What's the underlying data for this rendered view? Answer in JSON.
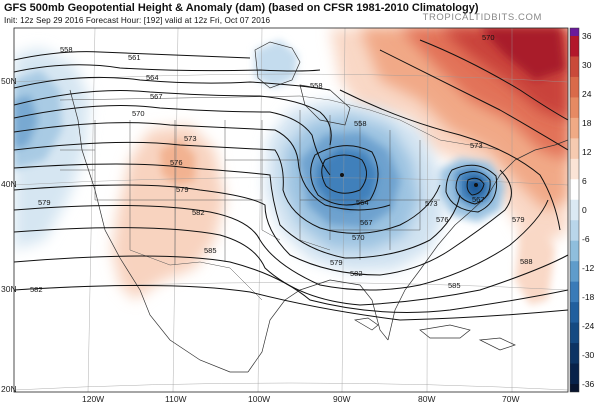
{
  "header": {
    "title": "GFS 500mb Geopotential Height & Anomaly (dam) (based on CFSR 1981-2010 Climatology)",
    "subtitle": "Init: 12z Sep 29 2016   Forecast Hour: [192]   valid at 12z Fri, Oct 07 2016",
    "brand": "TROPICALTIDBITS.COM"
  },
  "map": {
    "lat_labels": [
      "50N",
      "40N",
      "30N",
      "20N"
    ],
    "lon_labels": [
      "120W",
      "110W",
      "100W",
      "90W",
      "80W",
      "70W"
    ],
    "contour_labels": [
      "558",
      "561",
      "564",
      "567",
      "570",
      "573",
      "576",
      "579",
      "582",
      "585",
      "588",
      "564",
      "567",
      "570",
      "573",
      "576",
      "579",
      "582",
      "570",
      "573",
      "567",
      "558"
    ],
    "anomaly_centers": [
      {
        "type": "low",
        "region": "Upper Midwest"
      },
      {
        "type": "low",
        "region": "Mid-Atlantic coast"
      },
      {
        "type": "low",
        "region": "Pacific Northwest offshore"
      },
      {
        "type": "high",
        "region": "Southwest US"
      },
      {
        "type": "high",
        "region": "Northeast Canada"
      }
    ]
  },
  "colorbar": {
    "ticks": [
      "36",
      "30",
      "24",
      "18",
      "12",
      "6",
      "0",
      "-6",
      "-12",
      "-18",
      "-24",
      "-30",
      "-36"
    ],
    "colors": [
      "#b2182b",
      "#c94a3a",
      "#d96a4a",
      "#e68a63",
      "#f0aa85",
      "#f6cab0",
      "#fbe4d6",
      "#ffffff",
      "#dbe9f3",
      "#b9d6ea",
      "#8fbedd",
      "#5f9ccb",
      "#3a7bb8",
      "#215f9e",
      "#154a82",
      "#0d3464",
      "#08224a"
    ],
    "top_color": "#6a1b9a",
    "bottom_color": "#08142e"
  }
}
